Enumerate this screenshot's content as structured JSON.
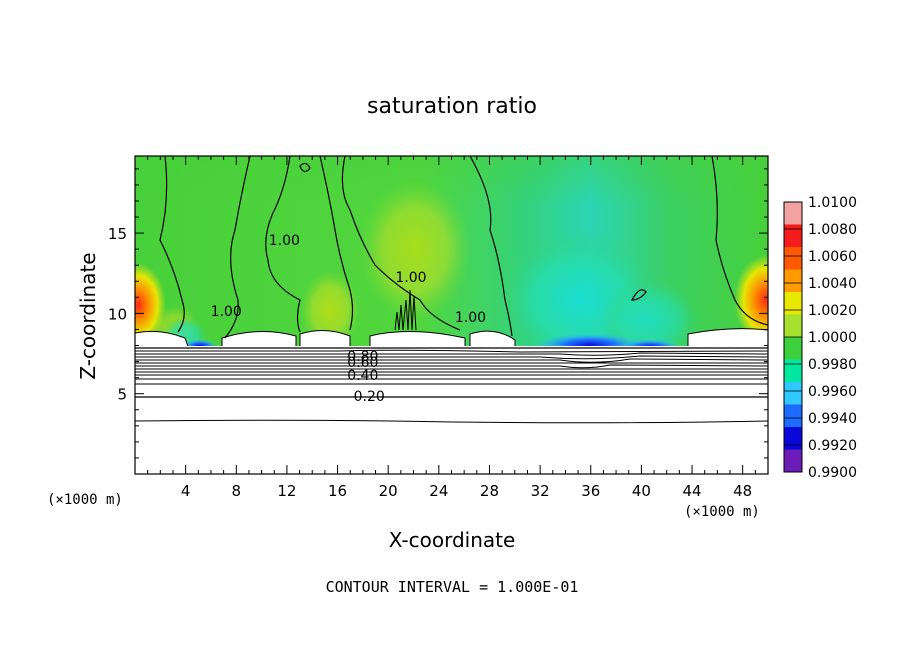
{
  "chart_data": {
    "type": "heatmap",
    "title": "saturation ratio",
    "xlabel": "X-coordinate",
    "ylabel": "Z-coordinate",
    "x_unit_label": "(×1000 m)",
    "x_unit_label_right": "(×1000 m)",
    "xlim": [
      0,
      50
    ],
    "ylim": [
      0,
      19.8
    ],
    "xticks": [
      4,
      8,
      12,
      16,
      20,
      24,
      28,
      32,
      36,
      40,
      44,
      48
    ],
    "yticks": [
      5,
      10,
      15
    ],
    "footer": "CONTOUR INTERVAL = 1.000E-01",
    "colorbar": {
      "levels": [
        "1.0100",
        "1.0080",
        "1.0060",
        "1.0040",
        "1.0020",
        "1.0000",
        "0.9980",
        "0.9960",
        "0.9940",
        "0.9920",
        "0.9900"
      ],
      "colors": [
        "#f3a2a2",
        "#f41c1c",
        "#ff5a00",
        "#ff9a00",
        "#e8e800",
        "#a8e030",
        "#3cd03c",
        "#00e8a0",
        "#30c8ff",
        "#1b6bff",
        "#0808d8",
        "#6a1bb8"
      ]
    },
    "contour_labels": [
      {
        "text": "0.20",
        "x": 18.5,
        "z": 4.8
      },
      {
        "text": "0.40",
        "x": 18.0,
        "z": 6.1
      },
      {
        "text": "0.60",
        "x": 18.0,
        "z": 6.9
      },
      {
        "text": "0.80",
        "x": 18.0,
        "z": 7.3
      },
      {
        "text": "1.00",
        "x": 11.8,
        "z": 14.5
      },
      {
        "text": "1.00",
        "x": 7.2,
        "z": 10.1
      },
      {
        "text": "1.00",
        "x": 21.8,
        "z": 12.2
      },
      {
        "text": "1.00",
        "x": 26.5,
        "z": 9.7
      }
    ]
  }
}
